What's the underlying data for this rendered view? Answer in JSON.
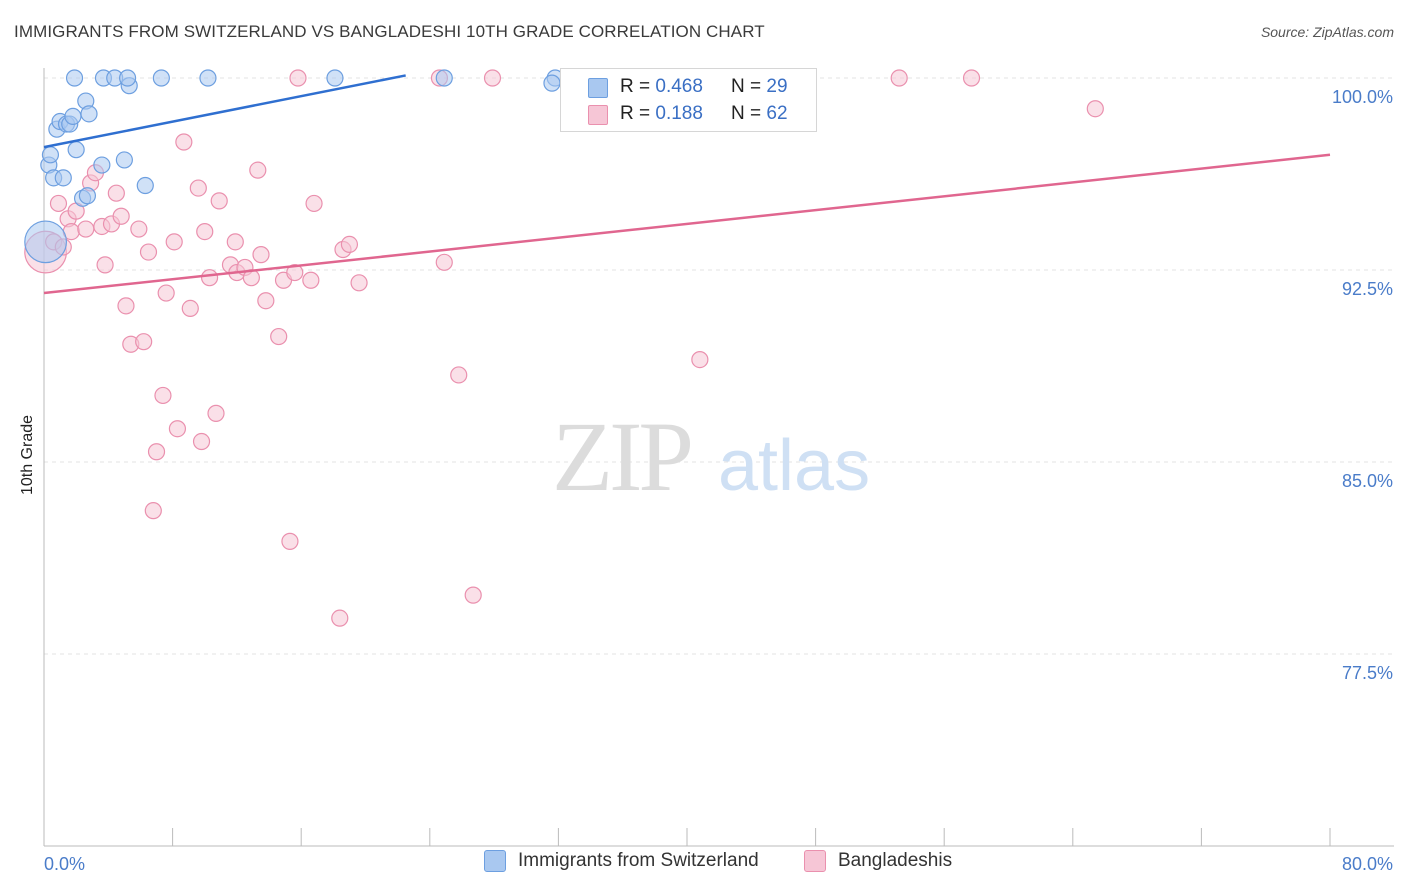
{
  "title": "IMMIGRANTS FROM SWITZERLAND VS BANGLADESHI 10TH GRADE CORRELATION CHART",
  "source": "Source: ZipAtlas.com",
  "watermark": {
    "zip": "ZIP",
    "atlas": "atlas"
  },
  "colors": {
    "blue_fill": "#a9c8f0",
    "blue_stroke": "#6d9fe0",
    "blue_line": "#2f6fd0",
    "pink_fill": "#f6c6d6",
    "pink_stroke": "#ea90ae",
    "pink_line": "#e0668f",
    "tick_text": "#4a7cc9",
    "grid": "#e3e3e3"
  },
  "legend_top": [
    {
      "r_label": "R =",
      "r_value": "0.468",
      "n_label": "N =",
      "n_value": "29"
    },
    {
      "r_label": "R =",
      "r_value": "0.188",
      "n_label": "N =",
      "n_value": "62"
    }
  ],
  "legend_bottom": [
    "Immigrants from Switzerland",
    "Bangladeshis"
  ],
  "chart_data": {
    "type": "scatter",
    "title": "IMMIGRANTS FROM SWITZERLAND VS BANGLADESHI 10TH GRADE CORRELATION CHART",
    "xlabel": "",
    "ylabel": "10th Grade",
    "xlim": [
      0,
      80
    ],
    "ylim": [
      70.0,
      100.5
    ],
    "x_tick_labels": [
      "0.0%",
      "80.0%"
    ],
    "y_ticks": [
      100.0,
      92.5,
      85.0,
      77.5
    ],
    "y_tick_labels": [
      "100.0%",
      "92.5%",
      "85.0%",
      "77.5%"
    ],
    "series": [
      {
        "name": "Immigrants from Switzerland",
        "R": 0.468,
        "N": 29,
        "trend": {
          "x": [
            0,
            22.5
          ],
          "y": [
            97.3,
            100.1
          ]
        },
        "points": [
          {
            "x": 0.1,
            "y": 93.6,
            "s": 2.6
          },
          {
            "x": 0.3,
            "y": 96.6
          },
          {
            "x": 0.4,
            "y": 97.0
          },
          {
            "x": 0.6,
            "y": 96.1
          },
          {
            "x": 0.8,
            "y": 98.0
          },
          {
            "x": 1.0,
            "y": 98.3
          },
          {
            "x": 1.2,
            "y": 96.1
          },
          {
            "x": 1.4,
            "y": 98.2
          },
          {
            "x": 1.6,
            "y": 98.2
          },
          {
            "x": 1.8,
            "y": 98.5
          },
          {
            "x": 1.9,
            "y": 100.0
          },
          {
            "x": 2.0,
            "y": 97.2
          },
          {
            "x": 2.4,
            "y": 95.3
          },
          {
            "x": 2.6,
            "y": 99.1
          },
          {
            "x": 2.8,
            "y": 98.6
          },
          {
            "x": 2.7,
            "y": 95.4
          },
          {
            "x": 3.6,
            "y": 96.6
          },
          {
            "x": 3.7,
            "y": 100.0
          },
          {
            "x": 4.4,
            "y": 100.0
          },
          {
            "x": 5.0,
            "y": 96.8
          },
          {
            "x": 5.3,
            "y": 99.7
          },
          {
            "x": 5.2,
            "y": 100.0
          },
          {
            "x": 6.3,
            "y": 95.8
          },
          {
            "x": 7.3,
            "y": 100.0
          },
          {
            "x": 10.2,
            "y": 100.0
          },
          {
            "x": 18.1,
            "y": 100.0
          },
          {
            "x": 24.9,
            "y": 100.0
          },
          {
            "x": 31.8,
            "y": 100.0
          },
          {
            "x": 31.6,
            "y": 99.8
          }
        ]
      },
      {
        "name": "Bangladeshis",
        "R": 0.188,
        "N": 62,
        "trend": {
          "x": [
            0,
            80
          ],
          "y": [
            91.6,
            97.0
          ]
        },
        "points": [
          {
            "x": 0.1,
            "y": 93.2,
            "s": 2.6
          },
          {
            "x": 0.6,
            "y": 93.6
          },
          {
            "x": 0.9,
            "y": 95.1
          },
          {
            "x": 1.2,
            "y": 93.4
          },
          {
            "x": 1.5,
            "y": 94.5
          },
          {
            "x": 1.7,
            "y": 94.0
          },
          {
            "x": 2.0,
            "y": 94.8
          },
          {
            "x": 2.6,
            "y": 94.1
          },
          {
            "x": 2.9,
            "y": 95.9
          },
          {
            "x": 3.2,
            "y": 96.3
          },
          {
            "x": 3.6,
            "y": 94.2
          },
          {
            "x": 3.8,
            "y": 92.7
          },
          {
            "x": 4.2,
            "y": 94.3
          },
          {
            "x": 4.5,
            "y": 95.5
          },
          {
            "x": 4.8,
            "y": 94.6
          },
          {
            "x": 5.1,
            "y": 91.1
          },
          {
            "x": 5.4,
            "y": 89.6
          },
          {
            "x": 5.9,
            "y": 94.1
          },
          {
            "x": 6.2,
            "y": 89.7
          },
          {
            "x": 6.5,
            "y": 93.2
          },
          {
            "x": 6.8,
            "y": 83.1
          },
          {
            "x": 7.0,
            "y": 85.4
          },
          {
            "x": 7.4,
            "y": 87.6
          },
          {
            "x": 7.6,
            "y": 91.6
          },
          {
            "x": 8.1,
            "y": 93.6
          },
          {
            "x": 8.3,
            "y": 86.3
          },
          {
            "x": 8.7,
            "y": 97.5
          },
          {
            "x": 9.1,
            "y": 91.0
          },
          {
            "x": 9.6,
            "y": 95.7
          },
          {
            "x": 9.8,
            "y": 85.8
          },
          {
            "x": 10.0,
            "y": 94.0
          },
          {
            "x": 10.3,
            "y": 92.2
          },
          {
            "x": 10.7,
            "y": 86.9
          },
          {
            "x": 10.9,
            "y": 95.2
          },
          {
            "x": 11.6,
            "y": 92.7
          },
          {
            "x": 11.9,
            "y": 93.6
          },
          {
            "x": 12.0,
            "y": 92.4
          },
          {
            "x": 12.5,
            "y": 92.6
          },
          {
            "x": 12.9,
            "y": 92.2
          },
          {
            "x": 13.3,
            "y": 96.4
          },
          {
            "x": 13.5,
            "y": 93.1
          },
          {
            "x": 13.8,
            "y": 91.3
          },
          {
            "x": 14.6,
            "y": 89.9
          },
          {
            "x": 14.9,
            "y": 92.1
          },
          {
            "x": 15.3,
            "y": 81.9
          },
          {
            "x": 15.6,
            "y": 92.4
          },
          {
            "x": 16.6,
            "y": 92.1
          },
          {
            "x": 16.8,
            "y": 95.1
          },
          {
            "x": 15.8,
            "y": 100.0
          },
          {
            "x": 18.4,
            "y": 78.9
          },
          {
            "x": 18.6,
            "y": 93.3
          },
          {
            "x": 19.0,
            "y": 93.5
          },
          {
            "x": 19.6,
            "y": 92.0
          },
          {
            "x": 24.6,
            "y": 100.0
          },
          {
            "x": 24.9,
            "y": 92.8
          },
          {
            "x": 25.8,
            "y": 88.4
          },
          {
            "x": 26.7,
            "y": 79.8
          },
          {
            "x": 27.9,
            "y": 100.0
          },
          {
            "x": 40.8,
            "y": 89.0
          },
          {
            "x": 53.2,
            "y": 100.0
          },
          {
            "x": 57.7,
            "y": 100.0
          },
          {
            "x": 65.4,
            "y": 98.8
          }
        ]
      }
    ]
  }
}
